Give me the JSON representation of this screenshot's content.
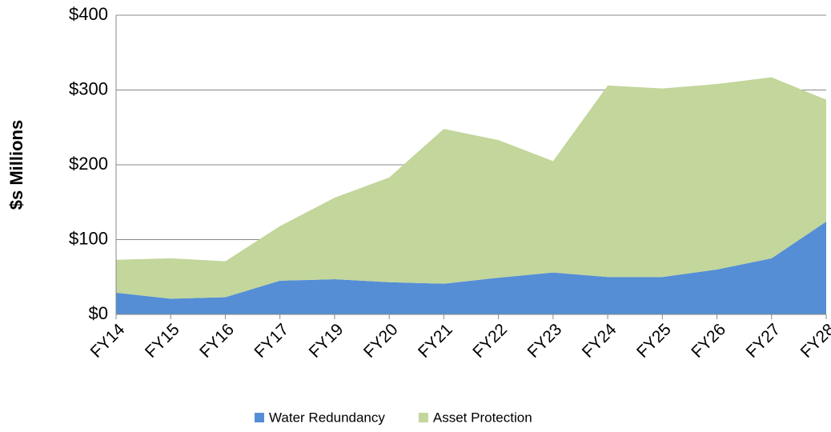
{
  "chart_data": {
    "type": "stacked_area",
    "y_label": "$s Millions",
    "categories": [
      "FY14",
      "FY15",
      "FY16",
      "FY17",
      "FY19",
      "FY20",
      "FY21",
      "FY22",
      "FY23",
      "FY24",
      "FY25",
      "FY26",
      "FY27",
      "FY28"
    ],
    "series": [
      {
        "name": "Water Redundancy",
        "color": "#558ed5",
        "values": [
          29,
          21,
          23,
          45,
          47,
          43,
          41,
          49,
          56,
          50,
          50,
          60,
          75,
          124
        ]
      },
      {
        "name": "Asset Protection",
        "color": "#c3d69b",
        "values": [
          44,
          54,
          48,
          73,
          109,
          140,
          207,
          184,
          149,
          256,
          252,
          248,
          242,
          163
        ]
      }
    ],
    "ylim": [
      0,
      400
    ],
    "yticks": [
      {
        "value": 0,
        "label": "$0"
      },
      {
        "value": 100,
        "label": "$100"
      },
      {
        "value": 200,
        "label": "$200"
      },
      {
        "value": 300,
        "label": "$300"
      },
      {
        "value": 400,
        "label": "$400"
      }
    ],
    "grid": true,
    "legend": "bottom"
  }
}
